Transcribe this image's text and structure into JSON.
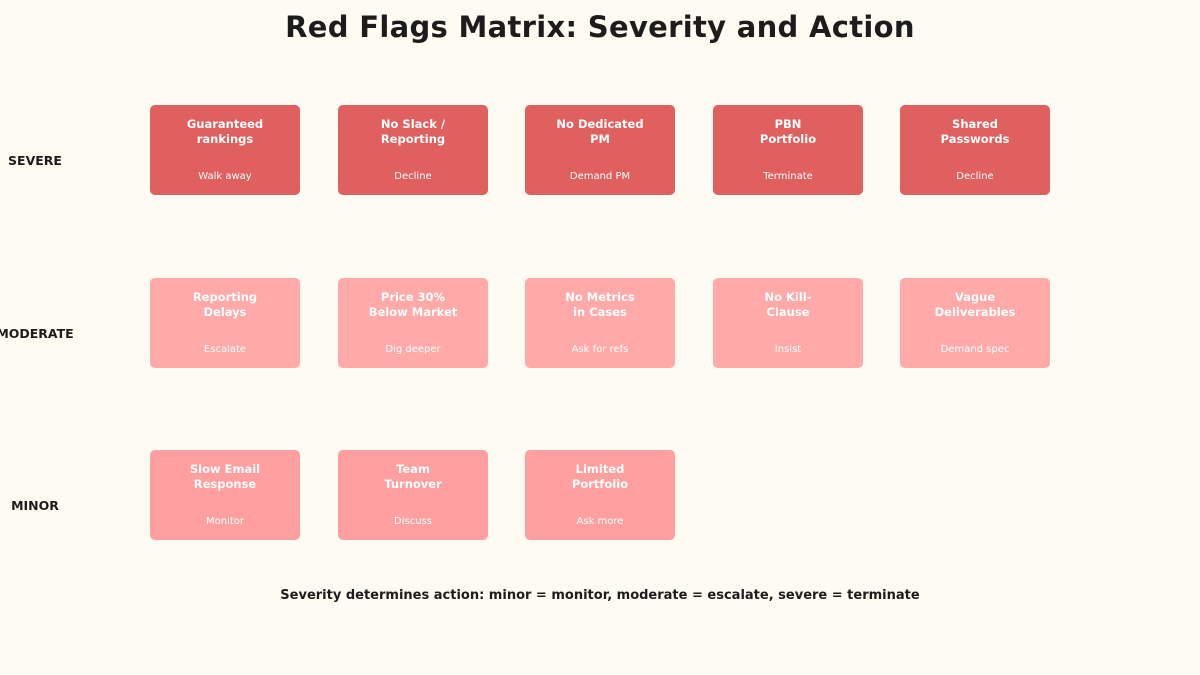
{
  "title": "Red Flags Matrix: Severity and Action",
  "colors": {
    "background": "#fefbf3",
    "severe": "#e05f5f",
    "moderate": "#ffa9a9",
    "minor": "#ff9f9f",
    "card_text": "#ffffff"
  },
  "rows": [
    {
      "label": "SEVERE",
      "cards": [
        {
          "label": "Guaranteed\nrankings",
          "action": "Walk away"
        },
        {
          "label": "No Slack /\nReporting",
          "action": "Decline"
        },
        {
          "label": "No Dedicated\nPM",
          "action": "Demand PM"
        },
        {
          "label": "PBN\nPortfolio",
          "action": "Terminate"
        },
        {
          "label": "Shared\nPasswords",
          "action": "Decline"
        }
      ]
    },
    {
      "label": "MODERATE",
      "cards": [
        {
          "label": "Reporting\nDelays",
          "action": "Escalate"
        },
        {
          "label": "Price 30%\nBelow Market",
          "action": "Dig deeper"
        },
        {
          "label": "No Metrics\nin Cases",
          "action": "Ask for refs"
        },
        {
          "label": "No Kill-\nClause",
          "action": "Insist"
        },
        {
          "label": "Vague\nDeliverables",
          "action": "Demand spec"
        }
      ]
    },
    {
      "label": "MINOR",
      "cards": [
        {
          "label": "Slow Email\nResponse",
          "action": "Monitor"
        },
        {
          "label": "Team\nTurnover",
          "action": "Discuss"
        },
        {
          "label": "Limited\nPortfolio",
          "action": "Ask more"
        }
      ]
    }
  ],
  "footnote": "Severity determines action: minor = monitor, moderate = escalate, severe = terminate"
}
